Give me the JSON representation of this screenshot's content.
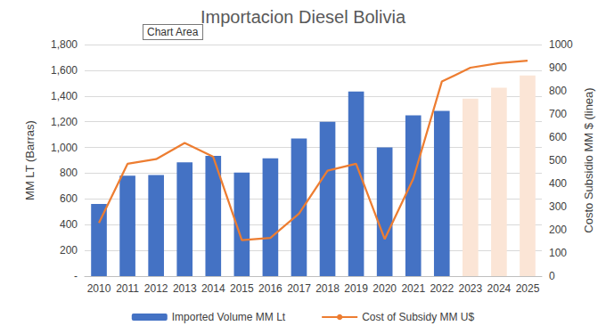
{
  "chart_data": {
    "type": "bar",
    "title": "Importacion Diesel Bolivia",
    "annotation": "Chart Area",
    "y_label": "MM LT (Barras)",
    "y2_label": "Costo Subsidio MM $ (linea)",
    "categories": [
      "2010",
      "2011",
      "2012",
      "2013",
      "2014",
      "2015",
      "2016",
      "2017",
      "2018",
      "2019",
      "2020",
      "2021",
      "2022",
      "2023",
      "2024",
      "2025"
    ],
    "series": [
      {
        "name": "Imported Volume MM Lt",
        "type": "bar",
        "colors": [
          "#4472c4",
          "#4472c4",
          "#4472c4",
          "#4472c4",
          "#4472c4",
          "#4472c4",
          "#4472c4",
          "#4472c4",
          "#4472c4",
          "#4472c4",
          "#4472c4",
          "#4472c4",
          "#4472c4",
          "#fbe5d6",
          "#fbe5d6",
          "#fbe5d6"
        ],
        "values": [
          560,
          780,
          785,
          885,
          935,
          805,
          915,
          1070,
          1200,
          1435,
          1000,
          1250,
          1285,
          1380,
          1465,
          1560
        ]
      },
      {
        "name": "Cost of Subsidy MM U$",
        "type": "line",
        "axis": "y2",
        "color": "#ed7d31",
        "values": [
          230,
          485,
          505,
          575,
          515,
          155,
          165,
          270,
          455,
          485,
          160,
          420,
          840,
          900,
          920,
          930
        ]
      }
    ],
    "ylim": [
      0,
      1800
    ],
    "yticks": [
      {
        "value": 0,
        "label": "-"
      },
      200,
      400,
      600,
      800,
      {
        "value": 1000,
        "label": "1,000"
      },
      {
        "value": 1200,
        "label": "1,200"
      },
      {
        "value": 1400,
        "label": "1,400"
      },
      {
        "value": 1600,
        "label": "1,600"
      },
      {
        "value": 1800,
        "label": "1,800"
      }
    ],
    "y2lim": [
      0,
      1000
    ],
    "y2ticks": [
      0,
      100,
      200,
      300,
      400,
      500,
      600,
      700,
      800,
      900,
      1000
    ],
    "grid": true,
    "legend": "bottom"
  }
}
